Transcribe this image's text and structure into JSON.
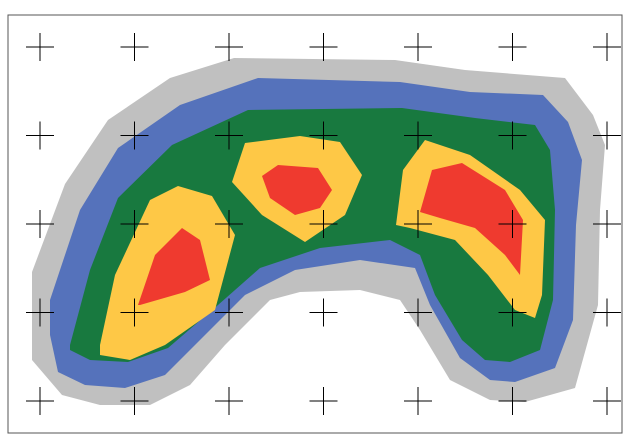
{
  "figure": {
    "description_free": true,
    "colors": {
      "background": "#ffffff",
      "frame": "#555555",
      "level_outer": "#c0c0c0",
      "level_2": "#5572bb",
      "level_3": "#18793f",
      "level_4": "#fec846",
      "level_peak": "#ef3a2f",
      "crosshair": "#000000"
    },
    "icons": [
      "crosshair-marker"
    ],
    "grid": {
      "columns": 7,
      "rows": 5
    },
    "peaks": 3
  }
}
